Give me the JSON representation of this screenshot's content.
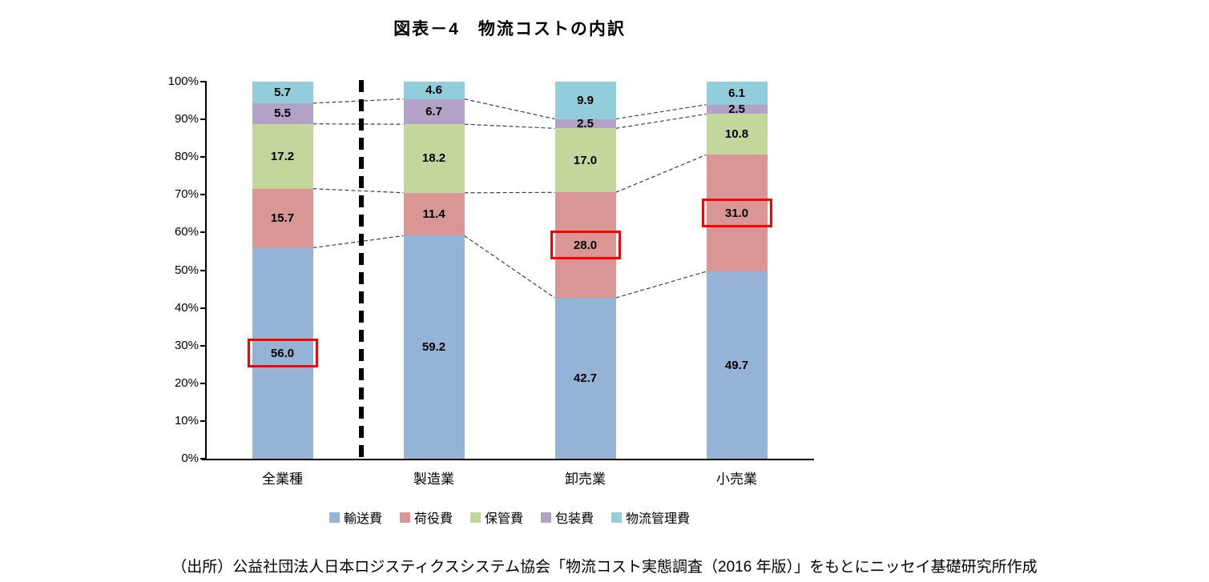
{
  "title": "図表－4　物流コストの内訳",
  "source": "（出所）公益社団法人日本ロジスティクスシステム協会「物流コスト実態調査（2016 年版）」をもとにニッセイ基礎研究所作成",
  "chart_data": {
    "type": "bar",
    "variant": "stacked-percent",
    "title": "図表－4　物流コストの内訳",
    "categories": [
      "全業種",
      "製造業",
      "卸売業",
      "小売業"
    ],
    "series": [
      {
        "name": "輸送費",
        "color": "#95B3D7",
        "values": [
          56.0,
          59.2,
          42.7,
          49.7
        ]
      },
      {
        "name": "荷役費",
        "color": "#D99694",
        "values": [
          15.7,
          11.4,
          28.0,
          31.0
        ]
      },
      {
        "name": "保管費",
        "color": "#C3D69B",
        "values": [
          17.2,
          18.2,
          17.0,
          10.8
        ]
      },
      {
        "name": "包装費",
        "color": "#B3A2C7",
        "values": [
          5.5,
          6.7,
          2.5,
          2.5
        ]
      },
      {
        "name": "物流管理費",
        "color": "#92CDDC",
        "values": [
          5.7,
          4.6,
          9.9,
          6.1
        ]
      }
    ],
    "y_ticks": [
      "100%",
      "90%",
      "80%",
      "70%",
      "60%",
      "50%",
      "40%",
      "30%",
      "20%",
      "10%",
      "0%"
    ],
    "ylim": [
      0,
      100
    ],
    "grid": false,
    "legend_position": "bottom",
    "separator_after_category_index": 0,
    "highlighted_labels": [
      {
        "category": "全業種",
        "series": "輸送費",
        "value": 56.0
      },
      {
        "category": "卸売業",
        "series": "荷役費",
        "value": 28.0
      },
      {
        "category": "小売業",
        "series": "荷役費",
        "value": 31.0
      }
    ],
    "highlight_color": "#FF0000",
    "connector_lines": "dashed lines linking segment boundaries between adjacent bars"
  }
}
